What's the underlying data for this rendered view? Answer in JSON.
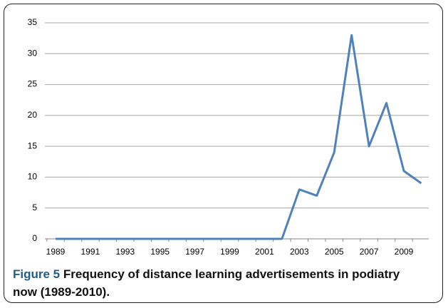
{
  "chart_data": {
    "type": "line",
    "categories": [
      "1989",
      null,
      "1991",
      null,
      "1993",
      null,
      "1995",
      null,
      "1997",
      null,
      "1999",
      null,
      "2001",
      null,
      "2003",
      null,
      "2005",
      null,
      "2007",
      null,
      "2009",
      null
    ],
    "values": [
      0,
      0,
      0,
      0,
      0,
      0,
      0,
      0,
      0,
      0,
      0,
      0,
      0,
      0,
      8,
      7,
      14,
      33,
      15,
      22,
      11,
      9
    ],
    "color": "#4f81bd",
    "ylim": [
      0,
      35
    ],
    "yticks": [
      0,
      5,
      10,
      15,
      20,
      25,
      30,
      35
    ],
    "grid": true,
    "caption": {
      "label": "Figure 5",
      "text": "Frequency of distance learning advertisements in podiatry now (1989-2010)."
    }
  }
}
